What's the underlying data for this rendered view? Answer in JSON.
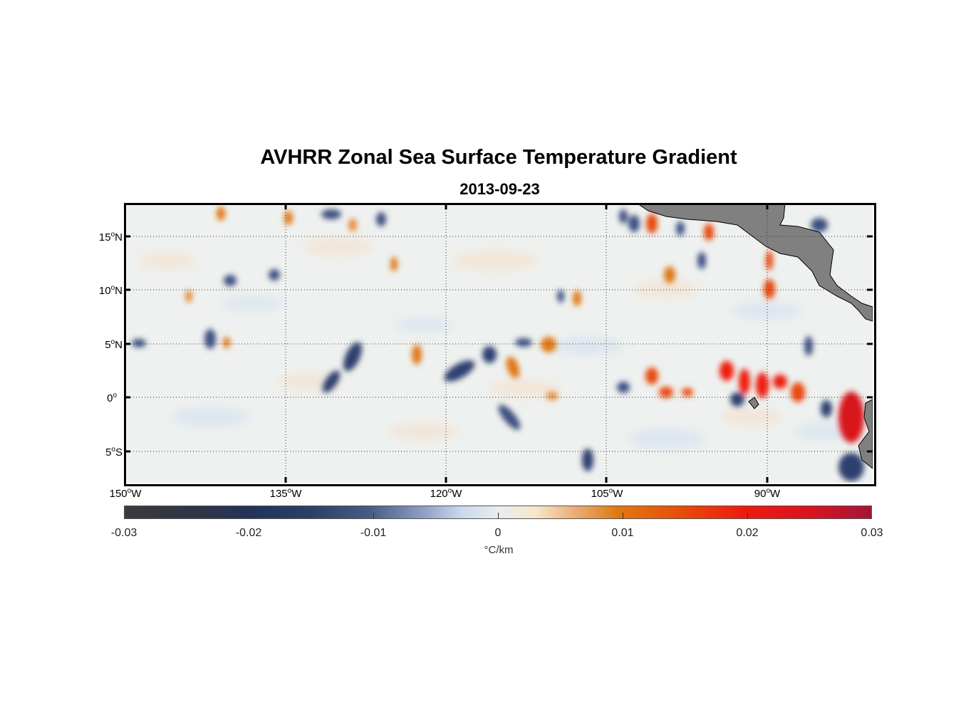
{
  "title": "AVHRR Zonal Sea Surface Temperature Gradient",
  "subtitle": "2013-09-23",
  "map": {
    "lon_range": [
      -150,
      -82
    ],
    "lat_range": [
      -8,
      18
    ],
    "grid": true,
    "land_color": "#808080",
    "lat_ticks": [
      {
        "value": 15,
        "deg": "15",
        "hem": "N"
      },
      {
        "value": 10,
        "deg": "10",
        "hem": "N"
      },
      {
        "value": 5,
        "deg": "5",
        "hem": "N"
      },
      {
        "value": 0,
        "deg": "0",
        "hem": ""
      },
      {
        "value": -5,
        "deg": "5",
        "hem": "S"
      }
    ],
    "lon_ticks": [
      {
        "value": -150,
        "deg": "150",
        "hem": "W"
      },
      {
        "value": -135,
        "deg": "135",
        "hem": "W"
      },
      {
        "value": -120,
        "deg": "120",
        "hem": "W"
      },
      {
        "value": -105,
        "deg": "105",
        "hem": "W"
      },
      {
        "value": -90,
        "deg": "90",
        "hem": "W"
      }
    ]
  },
  "colorbar": {
    "min": -0.03,
    "max": 0.03,
    "ticks": [
      "-0.03",
      "-0.02",
      "-0.01",
      "0",
      "0.01",
      "0.02",
      "0.03"
    ],
    "unit": "°C/km"
  }
}
